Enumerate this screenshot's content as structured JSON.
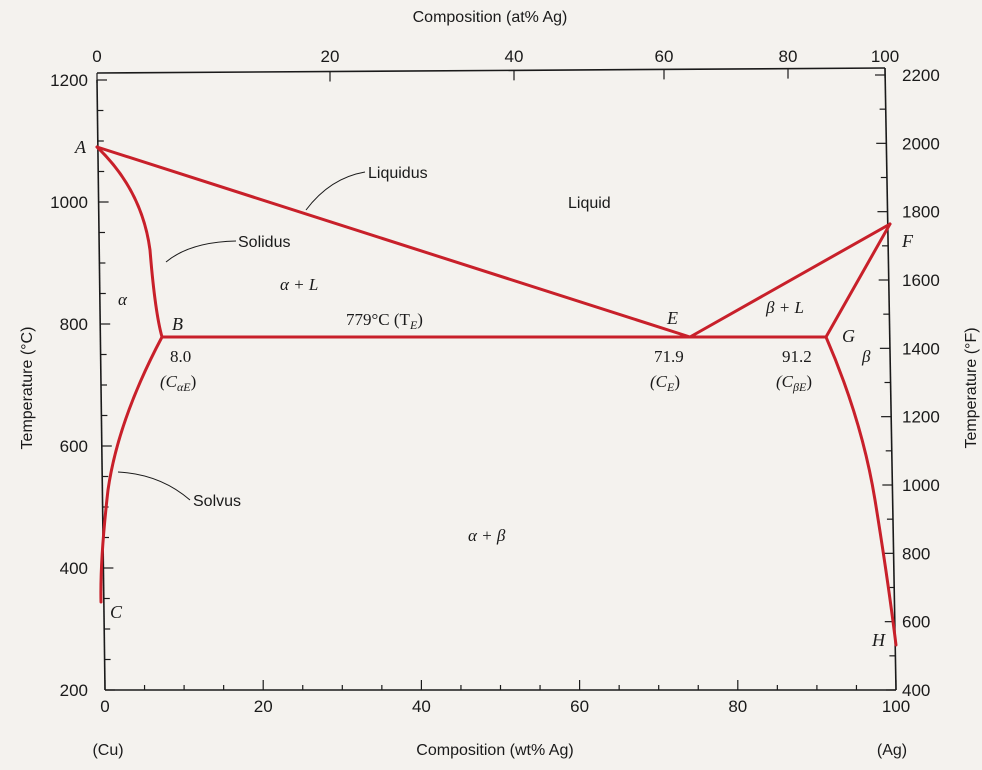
{
  "chart_data": {
    "type": "line",
    "title": "",
    "x_axis_bottom": {
      "label": "Composition (wt% Ag)",
      "range": [
        0,
        100
      ],
      "ticks": [
        0,
        20,
        40,
        60,
        80,
        100
      ],
      "tick_labels": [
        "0",
        "20",
        "40",
        "60",
        "80",
        "100"
      ],
      "end_labels": {
        "left": "(Cu)",
        "right": "(Ag)"
      }
    },
    "x_axis_top": {
      "label": "Composition (at% Ag)",
      "ticks": [
        0,
        20,
        40,
        60,
        80,
        100
      ],
      "tick_labels": [
        "0",
        "20",
        "40",
        "60",
        "80",
        "100"
      ]
    },
    "y_axis_left": {
      "label": "Temperature (°C)",
      "range": [
        200,
        1200
      ],
      "ticks": [
        200,
        400,
        600,
        800,
        1000,
        1200
      ],
      "tick_labels": [
        "200",
        "400",
        "600",
        "800",
        "1000",
        "1200"
      ]
    },
    "y_axis_right": {
      "label": "Temperature (°F)",
      "ticks": [
        400,
        600,
        800,
        1000,
        1200,
        1400,
        1600,
        1800,
        2000,
        2200
      ],
      "tick_labels": [
        "400",
        "600",
        "800",
        "1000",
        "1200",
        "1400",
        "1600",
        "1800",
        "2000",
        "2200"
      ]
    },
    "series": [
      {
        "name": "Liquidus",
        "x": [
          0,
          71.9,
          100
        ],
        "y": [
          1085,
          779,
          962
        ]
      },
      {
        "name": "Solidus",
        "x": [
          0,
          6.5,
          8.0
        ],
        "y": [
          1085,
          870,
          779
        ]
      },
      {
        "x": [
          100,
          91.2
        ],
        "y": [
          962,
          779
        ]
      },
      {
        "x": [
          8.0,
          91.2
        ],
        "y": [
          779,
          779
        ]
      },
      {
        "name": "Solvus",
        "x": [
          8.0,
          3.5,
          1.0,
          0.3
        ],
        "y": [
          779,
          600,
          450,
          350
        ]
      },
      {
        "x": [
          91.2,
          95.5,
          98.5,
          99.2
        ],
        "y": [
          779,
          620,
          490,
          440
        ]
      }
    ],
    "points": [
      {
        "label": "A",
        "x": 0,
        "y": 1085
      },
      {
        "label": "B",
        "x": 8.0,
        "y": 779
      },
      {
        "label": "C",
        "x": 0.3,
        "y": 350
      },
      {
        "label": "E",
        "x": 71.9,
        "y": 779
      },
      {
        "label": "F",
        "x": 100,
        "y": 962
      },
      {
        "label": "G",
        "x": 91.2,
        "y": 779
      },
      {
        "label": "H",
        "x": 99.2,
        "y": 440
      }
    ],
    "regions": [
      {
        "label": "Liquid"
      },
      {
        "label": "α + L"
      },
      {
        "label": "β + L"
      },
      {
        "label": "α"
      },
      {
        "label": "β"
      },
      {
        "label": "α + β"
      }
    ],
    "annotations": {
      "eutectic_temperature": "779°C (T",
      "eutectic_temperature_sub": "E",
      "c_alpha_e_value": "8.0",
      "c_alpha_e_label": "(C",
      "c_alpha_e_sub": "αE",
      "c_e_value": "71.9",
      "c_e_label": "(C",
      "c_e_sub": "E",
      "c_beta_e_value": "91.2",
      "c_beta_e_label": "(C",
      "c_beta_e_sub": "βE",
      "close_paren": ")"
    },
    "grid": false
  }
}
